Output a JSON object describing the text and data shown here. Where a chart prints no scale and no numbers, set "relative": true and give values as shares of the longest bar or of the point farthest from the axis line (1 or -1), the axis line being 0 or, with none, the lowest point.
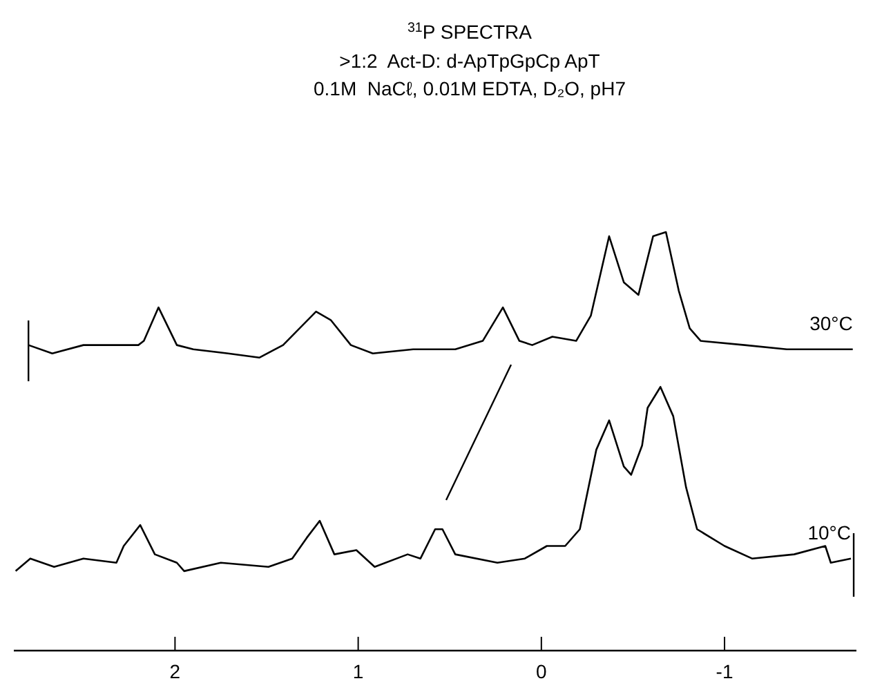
{
  "chart_data": {
    "type": "line",
    "title": "$^{31}$P SPECTRA",
    "subtitle": ">1:2  Act-D: d-ApTpGpCp ApT\n0.1M  NaCℓ, 0.01M EDTA, D₂O, pH7",
    "relative": true,
    "xlim": [
      2.88,
      -1.72
    ],
    "xticks": [
      2,
      1,
      0,
      -1
    ],
    "grid": false,
    "marker": "none",
    "line_style": "solid",
    "series": [
      {
        "name": "30°C",
        "color": "#000000",
        "x": [
          2.8,
          2.67,
          2.5,
          2.35,
          2.2,
          2.17,
          2.09,
          1.99,
          1.9,
          1.71,
          1.54,
          1.41,
          1.23,
          1.15,
          1.04,
          0.92,
          0.7,
          0.47,
          0.32,
          0.21,
          0.12,
          0.05,
          -0.06,
          -0.19,
          -0.27,
          -0.37,
          -0.45,
          -0.53,
          -0.61,
          -0.68,
          -0.75,
          -0.81,
          -0.87,
          -1.11,
          -1.34,
          -1.56,
          -1.7
        ],
        "values": [
          0.73,
          0.71,
          0.73,
          0.73,
          0.73,
          0.74,
          0.82,
          0.73,
          0.72,
          0.71,
          0.7,
          0.73,
          0.81,
          0.79,
          0.73,
          0.71,
          0.72,
          0.72,
          0.74,
          0.82,
          0.74,
          0.73,
          0.75,
          0.74,
          0.8,
          0.99,
          0.88,
          0.85,
          0.99,
          1.0,
          0.86,
          0.77,
          0.74,
          0.73,
          0.72,
          0.72,
          0.72
        ]
      },
      {
        "name": "10°C",
        "color": "#000000",
        "x": [
          2.87,
          2.79,
          2.66,
          2.5,
          2.32,
          2.28,
          2.19,
          2.11,
          1.99,
          1.95,
          1.75,
          1.49,
          1.36,
          1.28,
          1.21,
          1.13,
          1.01,
          0.91,
          0.73,
          0.66,
          0.58,
          0.54,
          0.47,
          0.24,
          0.09,
          -0.03,
          -0.13,
          -0.21,
          -0.3,
          -0.37,
          -0.45,
          -0.49,
          -0.55,
          -0.58,
          -0.65,
          -0.72,
          -0.79,
          -0.85,
          -1.0,
          -1.15,
          -1.38,
          -1.55,
          -1.58,
          -1.69
        ],
        "values": [
          0.19,
          0.22,
          0.2,
          0.22,
          0.21,
          0.25,
          0.3,
          0.23,
          0.21,
          0.19,
          0.21,
          0.2,
          0.22,
          0.27,
          0.31,
          0.23,
          0.24,
          0.2,
          0.23,
          0.22,
          0.29,
          0.29,
          0.23,
          0.21,
          0.22,
          0.25,
          0.25,
          0.29,
          0.48,
          0.55,
          0.44,
          0.42,
          0.49,
          0.58,
          0.63,
          0.56,
          0.39,
          0.29,
          0.25,
          0.22,
          0.23,
          0.25,
          0.21,
          0.22
        ]
      }
    ]
  }
}
